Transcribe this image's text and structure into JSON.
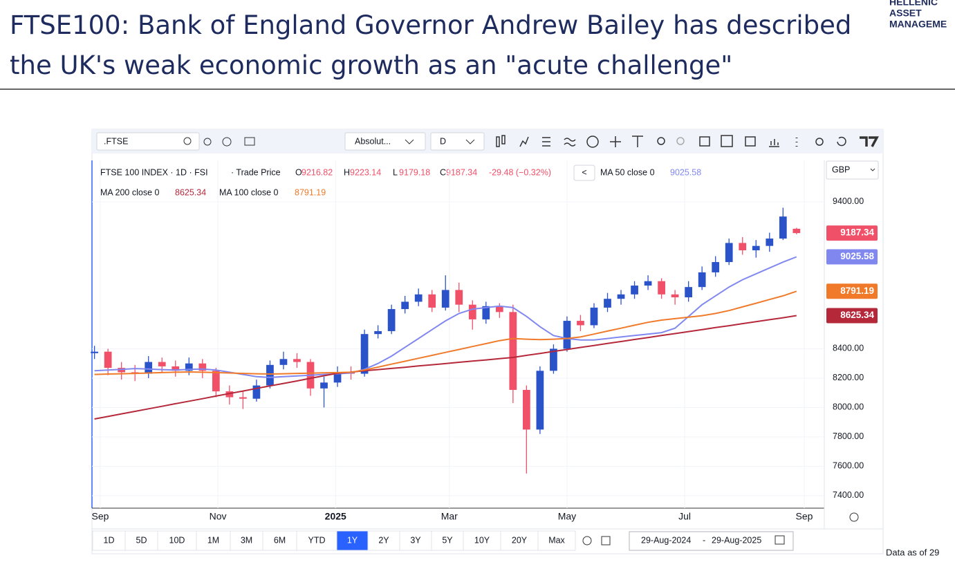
{
  "header": {
    "title": "FTSE100: Bank of England Governor Andrew Bailey has described the UK's weak economic growth as an \"acute challenge\"",
    "logo": [
      "HELLENIC",
      "ASSET",
      "MANAGEME"
    ]
  },
  "toolbar": {
    "symbol": ".FTSE",
    "scale": "Absolut...",
    "interval": "D",
    "currency": "GBP"
  },
  "legend": {
    "instrument": "FTSE 100 INDEX · 1D · FSI",
    "price_type": "· Trade Price",
    "open_prefix": "O",
    "high_prefix": "H",
    "low_prefix": "L",
    "close_prefix": "C",
    "change": "-29.48 (−0.32%)",
    "collapse": "<"
  },
  "range_buttons": [
    "1D",
    "5D",
    "10D",
    "1M",
    "3M",
    "6M",
    "YTD",
    "1Y",
    "2Y",
    "3Y",
    "5Y",
    "10Y",
    "20Y",
    "Max"
  ],
  "active_range": "1Y",
  "date_range": {
    "from": "29-Aug-2024",
    "separator": "-",
    "to": "29-Aug-2025"
  },
  "footnote": "Data as of 29",
  "chart_data": {
    "type": "candlestick",
    "x": [
      0,
      7,
      14,
      21,
      28,
      35,
      42,
      49,
      56,
      63,
      70,
      77,
      84,
      91,
      98,
      105,
      112,
      119,
      126,
      133,
      140,
      147,
      154,
      161,
      168,
      175,
      182,
      189,
      196,
      203,
      210,
      217,
      224,
      231,
      238,
      245,
      252,
      259,
      266,
      273,
      280,
      287,
      294,
      301,
      308,
      315,
      322,
      329,
      336,
      343,
      350,
      357,
      364
    ],
    "open": [
      8370,
      8380,
      8270,
      8240,
      8230,
      8310,
      8280,
      8250,
      8300,
      8250,
      8110,
      8070,
      8060,
      8150,
      8290,
      8330,
      8310,
      8130,
      8170,
      8240,
      8230,
      8500,
      8520,
      8670,
      8720,
      8770,
      8680,
      8800,
      8700,
      8600,
      8690,
      8650,
      8120,
      7850,
      8250,
      8400,
      8590,
      8560,
      8680,
      8740,
      8770,
      8830,
      8860,
      8770,
      8750,
      8820,
      8920,
      8990,
      9120,
      9070,
      9100,
      9150,
      9216.82
    ],
    "high": [
      8420,
      8400,
      8310,
      8290,
      8350,
      8340,
      8320,
      8340,
      8330,
      8270,
      8150,
      8110,
      8190,
      8320,
      8380,
      8370,
      8330,
      8210,
      8280,
      8280,
      8530,
      8560,
      8700,
      8760,
      8810,
      8800,
      8900,
      8850,
      8730,
      8720,
      8710,
      8700,
      8150,
      8280,
      8430,
      8620,
      8630,
      8710,
      8780,
      8800,
      8860,
      8900,
      8880,
      8800,
      8860,
      8960,
      9030,
      9150,
      9160,
      9140,
      9190,
      9360,
      9223.14
    ],
    "low": [
      8330,
      8220,
      8190,
      8180,
      8200,
      8240,
      8210,
      8220,
      8200,
      8070,
      8020,
      7990,
      8040,
      8130,
      8260,
      8270,
      8080,
      8000,
      8140,
      8190,
      8210,
      8470,
      8500,
      8640,
      8690,
      8650,
      8660,
      8650,
      8530,
      8570,
      8610,
      8030,
      7551,
      7820,
      8230,
      8380,
      8520,
      8540,
      8650,
      8700,
      8740,
      8800,
      8740,
      8700,
      8720,
      8800,
      8890,
      8970,
      9040,
      9020,
      9060,
      9140,
      9179.18
    ],
    "close": [
      8380,
      8270,
      8240,
      8230,
      8310,
      8280,
      8250,
      8300,
      8250,
      8110,
      8070,
      8060,
      8150,
      8290,
      8330,
      8310,
      8130,
      8170,
      8240,
      8230,
      8500,
      8520,
      8670,
      8720,
      8770,
      8680,
      8800,
      8700,
      8600,
      8690,
      8650,
      8120,
      7850,
      8250,
      8400,
      8590,
      8560,
      8680,
      8740,
      8770,
      8830,
      8860,
      8770,
      8750,
      8820,
      8920,
      8990,
      9120,
      9070,
      9100,
      9150,
      9300,
      9187.34
    ],
    "up_color": "#2a52c9",
    "down_color": "#f05068",
    "series": [
      {
        "name": "MA 50 close 0",
        "color": "#8088f0",
        "values": [
          8250,
          8255,
          8260,
          8265,
          8262,
          8258,
          8255,
          8260,
          8262,
          8255,
          8240,
          8225,
          8210,
          8205,
          8210,
          8215,
          8220,
          8225,
          8230,
          8235,
          8260,
          8300,
          8350,
          8410,
          8470,
          8530,
          8590,
          8640,
          8670,
          8680,
          8690,
          8680,
          8620,
          8550,
          8490,
          8470,
          8460,
          8460,
          8470,
          8480,
          8490,
          8500,
          8510,
          8540,
          8620,
          8700,
          8760,
          8820,
          8870,
          8910,
          8950,
          8990,
          9025.58
        ]
      },
      {
        "name": "MA 200 close 0",
        "color": "#b5283a",
        "values": [
          7922,
          7939,
          7957,
          7974,
          7991,
          8008,
          8026,
          8043,
          8060,
          8078,
          8095,
          8112,
          8130,
          8147,
          8164,
          8181,
          8199,
          8216,
          8233,
          8241,
          8250,
          8258,
          8266,
          8274,
          8283,
          8291,
          8299,
          8308,
          8316,
          8324,
          8333,
          8341,
          8355,
          8368,
          8382,
          8395,
          8409,
          8422,
          8436,
          8449,
          8463,
          8476,
          8490,
          8503,
          8517,
          8530,
          8544,
          8557,
          8571,
          8584,
          8598,
          8611,
          8625.34
        ]
      },
      {
        "name": "MA 100 close 0",
        "color": "#f07a2a",
        "values": [
          8225,
          8228,
          8230,
          8232,
          8235,
          8238,
          8240,
          8242,
          8240,
          8238,
          8235,
          8232,
          8230,
          8228,
          8230,
          8232,
          8234,
          8236,
          8238,
          8240,
          8255,
          8275,
          8295,
          8315,
          8335,
          8355,
          8375,
          8395,
          8415,
          8435,
          8455,
          8470,
          8465,
          8462,
          8465,
          8470,
          8480,
          8500,
          8520,
          8540,
          8560,
          8580,
          8595,
          8605,
          8615,
          8625,
          8640,
          8660,
          8685,
          8710,
          8735,
          8760,
          8791.19
        ]
      }
    ],
    "xlim": [
      -1.3,
      378.4
    ],
    "xticks": [
      {
        "value": 3,
        "label": "Sep"
      },
      {
        "value": 64,
        "label": "Nov"
      },
      {
        "value": 125,
        "label": "2025"
      },
      {
        "value": 184,
        "label": "Mar"
      },
      {
        "value": 245,
        "label": "May"
      },
      {
        "value": 306,
        "label": "Jul"
      },
      {
        "value": 368,
        "label": "Sep"
      }
    ],
    "ylim": [
      7315,
      9682
    ],
    "yticks": [
      {
        "value": 7400,
        "label": "7400.00"
      },
      {
        "value": 7600,
        "label": "7600.00"
      },
      {
        "value": 7800,
        "label": "7800.00"
      },
      {
        "value": 8000,
        "label": "8000.00"
      },
      {
        "value": 8200,
        "label": "8200.00"
      },
      {
        "value": 8400,
        "label": "8400.00"
      },
      {
        "value": 9400,
        "label": "9400.00"
      }
    ],
    "grid": true
  }
}
